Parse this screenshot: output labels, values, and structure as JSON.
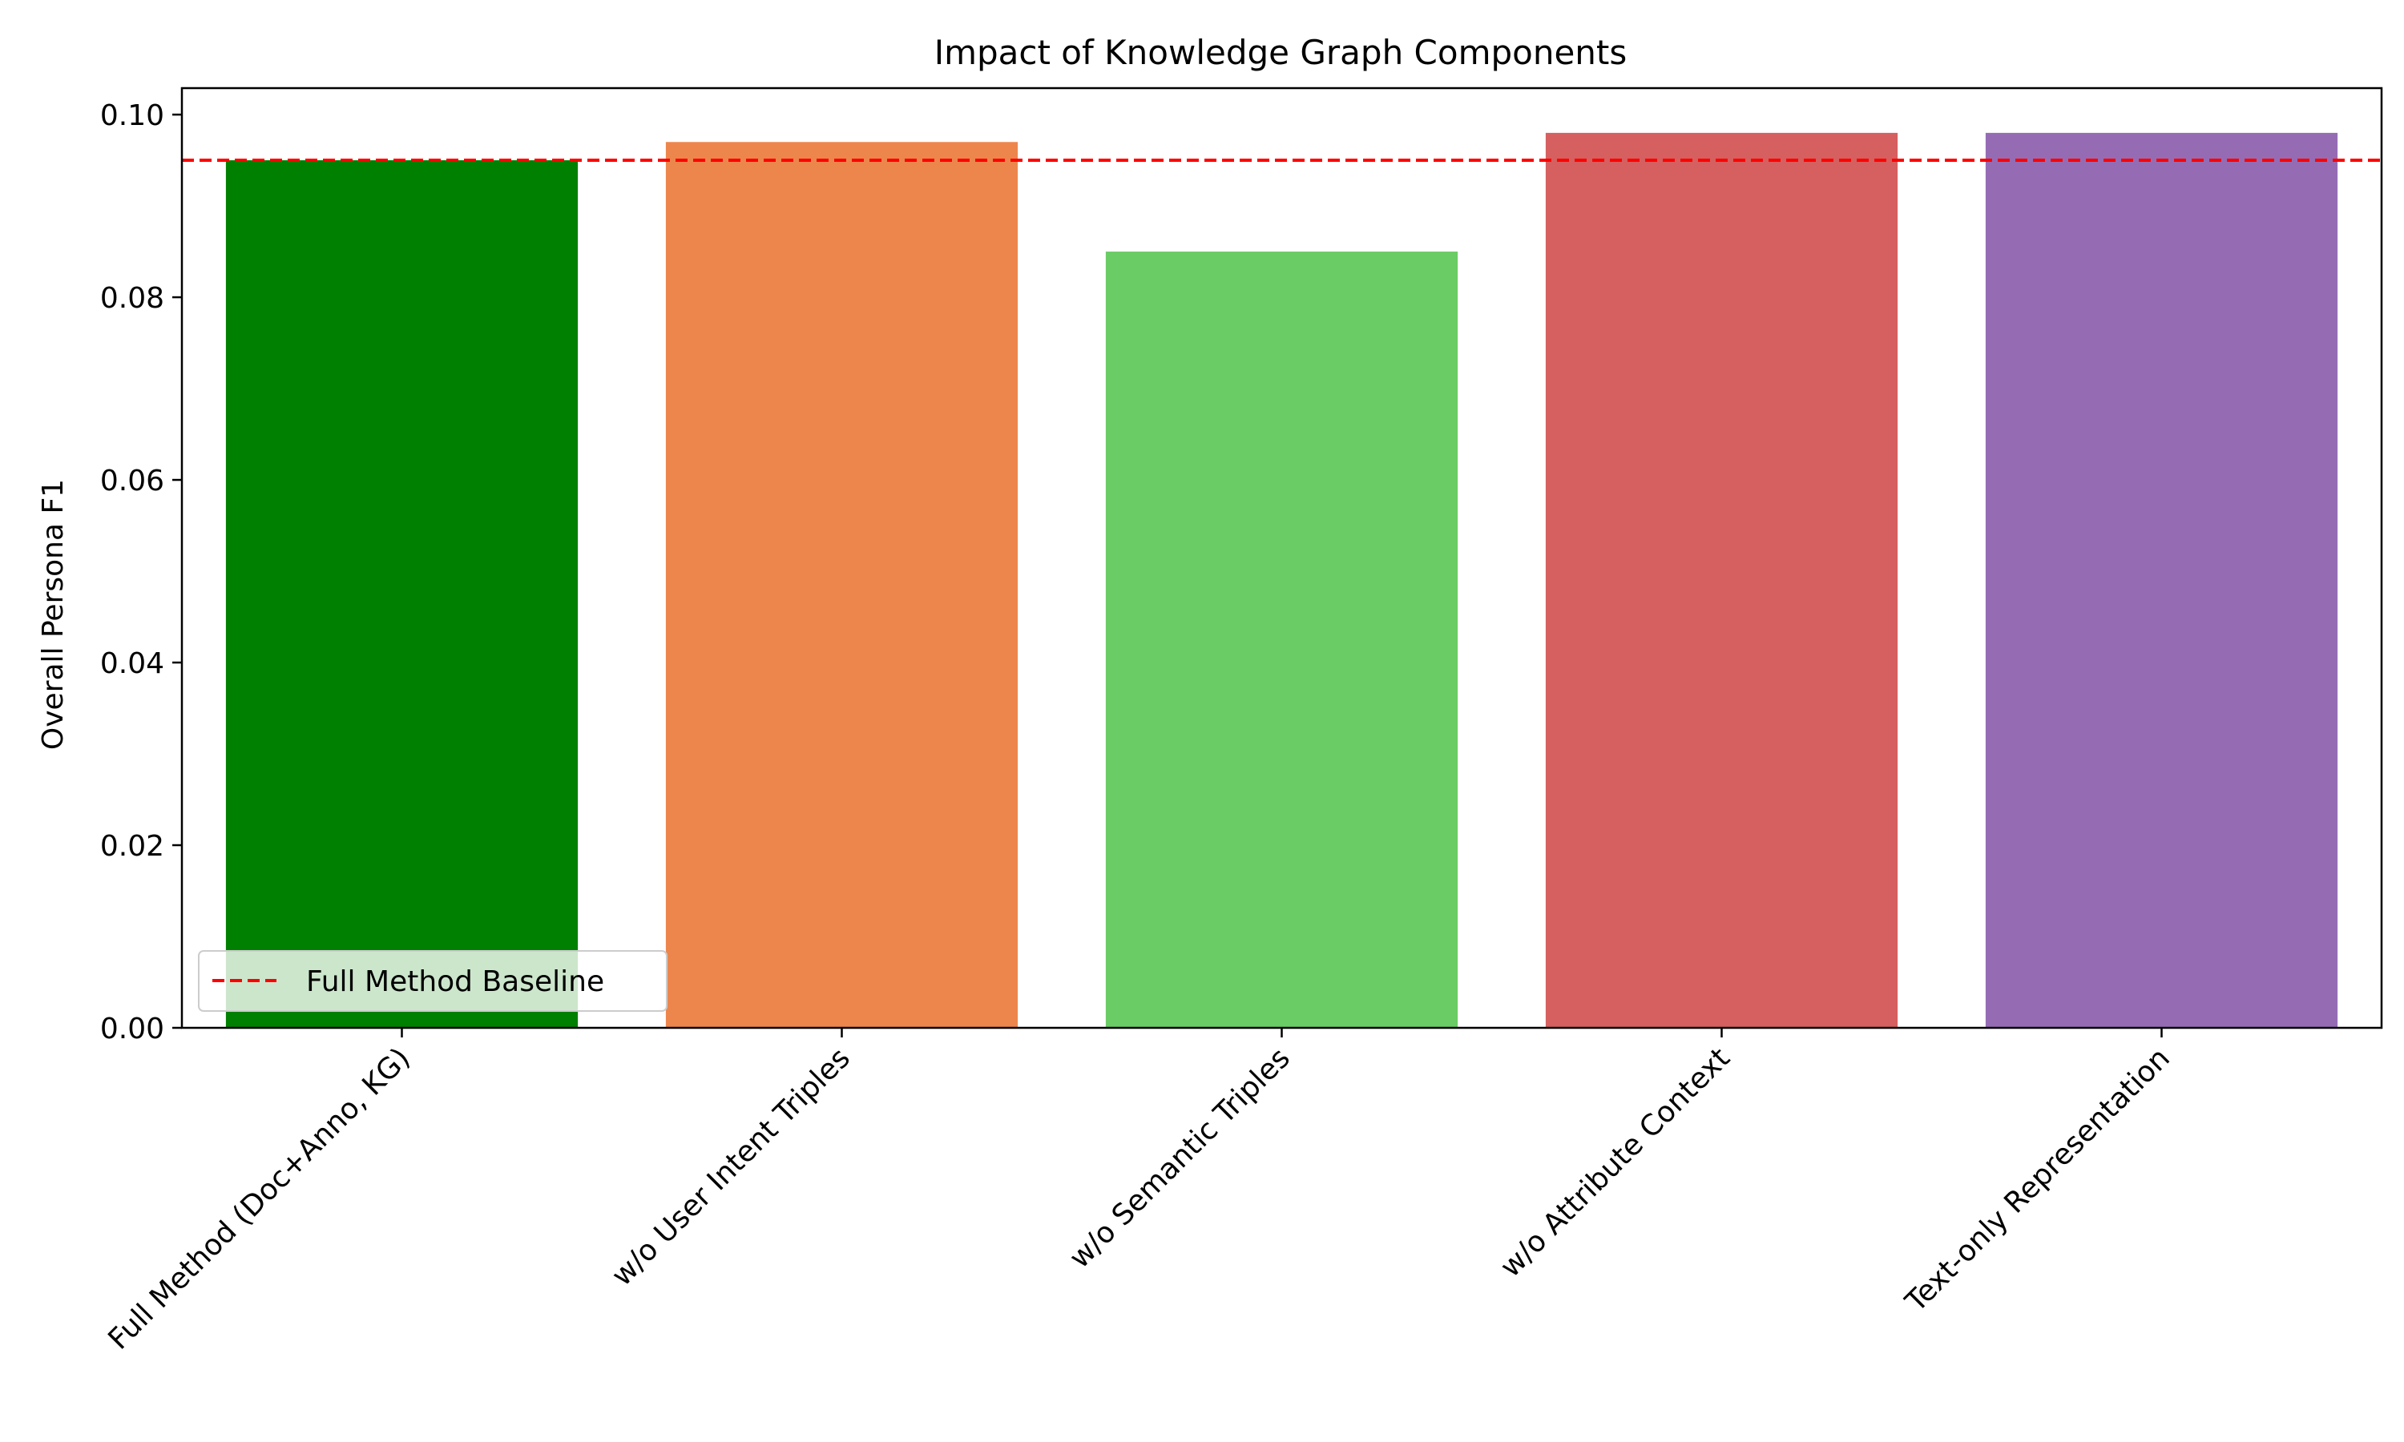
{
  "chart_data": {
    "type": "bar",
    "title": "Impact of Knowledge Graph Components",
    "xlabel": "",
    "ylabel": "Overall Persona F1",
    "categories": [
      "Full Method (Doc+Anno, KG)",
      "w/o User Intent Triples",
      "w/o Semantic Triples",
      "w/o Attribute Context",
      "Text-only Representation"
    ],
    "values": [
      0.095,
      0.097,
      0.085,
      0.098,
      0.098
    ],
    "bar_colors": [
      "#008000",
      "#ed864c",
      "#6acc65",
      "#d65f5f",
      "#956cb4"
    ],
    "ylim": [
      0,
      0.1029
    ],
    "yticks": [
      0.0,
      0.02,
      0.04,
      0.06,
      0.08,
      0.1
    ],
    "ytick_labels": [
      "0.00",
      "0.02",
      "0.04",
      "0.06",
      "0.08",
      "0.10"
    ],
    "baseline": {
      "value": 0.095,
      "label": "Full Method Baseline",
      "color": "#ff0000",
      "style": "dashed"
    },
    "legend_position": "lower-left",
    "grid": false
  }
}
